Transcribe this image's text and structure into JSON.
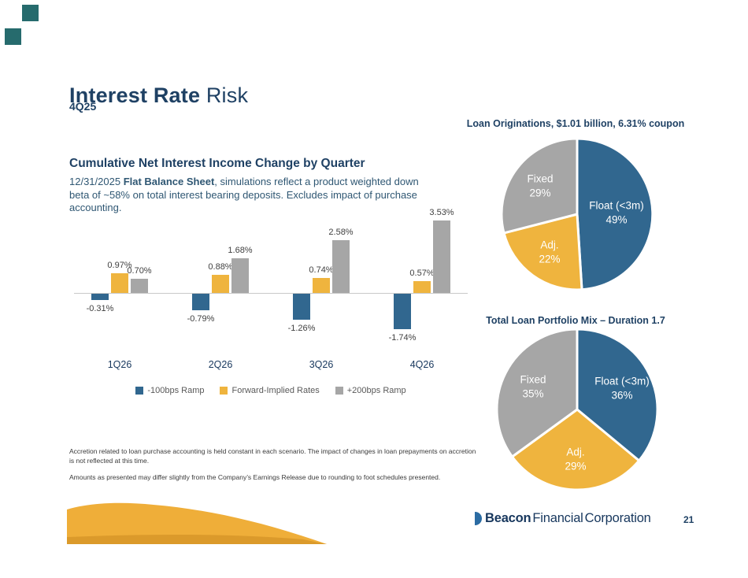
{
  "page": {
    "title_bold": "Interest Rate",
    "title_regular": " Risk",
    "subtitle": "4Q25",
    "page_number": "21"
  },
  "nii_section": {
    "heading": "Cumulative Net Interest Income Change by Quarter",
    "description": {
      "prefix": "12/31/2025 ",
      "bold": "Flat Balance Sheet",
      "suffix": ", simulations reflect a product weighted down beta of ~58% on total interest bearing deposits. Excludes impact of purchase accounting."
    }
  },
  "footnotes": [
    "Accretion related to loan purchase accounting is held constant in each scenario.  The impact of changes in loan prepayments on accretion is not reflected at this time.",
    "Amounts as presented may differ slightly from the Company’s Earnings Release due to rounding to foot schedules presented."
  ],
  "footer": {
    "logo_word1": "Beacon",
    "logo_word2": "Financial",
    "logo_word3": "Corporation"
  },
  "colors": {
    "navy": "#1F4164",
    "steel_blue": "#31678F",
    "gold": "#EFB43E",
    "gray": "#A6A6A6",
    "teal": "#266B6D",
    "swoosh_gold": "#EFAE39"
  },
  "chart_data": [
    {
      "type": "bar",
      "title": "Cumulative Net Interest Income Change by Quarter",
      "categories": [
        "1Q26",
        "2Q26",
        "3Q26",
        "4Q26"
      ],
      "series": [
        {
          "name": "-100bps Ramp",
          "color": "#31678F",
          "values": [
            -0.31,
            -0.79,
            -1.26,
            -1.74
          ],
          "labels": [
            "-0.31%",
            "-0.79%",
            "-1.26%",
            "-1.74%"
          ]
        },
        {
          "name": "Forward-Implied Rates",
          "color": "#EFB43E",
          "values": [
            0.97,
            0.88,
            0.74,
            0.57
          ],
          "labels": [
            "0.97%",
            "0.88%",
            "0.74%",
            "0.57%"
          ]
        },
        {
          "name": "+200bps Ramp",
          "color": "#A6A6A6",
          "values": [
            0.7,
            1.68,
            2.58,
            3.53
          ],
          "labels": [
            "0.70%",
            "1.68%",
            "2.58%",
            "3.53%"
          ]
        }
      ],
      "ylabel": "",
      "xlabel": "",
      "ylim": [
        -2.2,
        4.1
      ],
      "grid": false,
      "legend_position": "bottom",
      "value_format": "percent"
    },
    {
      "type": "pie",
      "title": "Loan Originations, $1.01 billion, 6.31% coupon",
      "slices": [
        {
          "label": "Float (<3m)",
          "value": 49,
          "value_label": "49%",
          "color": "#31678F"
        },
        {
          "label": "Adj.",
          "value": 22,
          "value_label": "22%",
          "color": "#EFB43E"
        },
        {
          "label": "Fixed",
          "value": 29,
          "value_label": "29%",
          "color": "#A6A6A6"
        }
      ]
    },
    {
      "type": "pie",
      "title": "Total Loan Portfolio Mix – Duration 1.7",
      "slices": [
        {
          "label": "Float (<3m)",
          "value": 36,
          "value_label": "36%",
          "color": "#31678F"
        },
        {
          "label": "Adj.",
          "value": 29,
          "value_label": "29%",
          "color": "#EFB43E"
        },
        {
          "label": "Fixed",
          "value": 35,
          "value_label": "35%",
          "color": "#A6A6A6"
        }
      ]
    }
  ]
}
